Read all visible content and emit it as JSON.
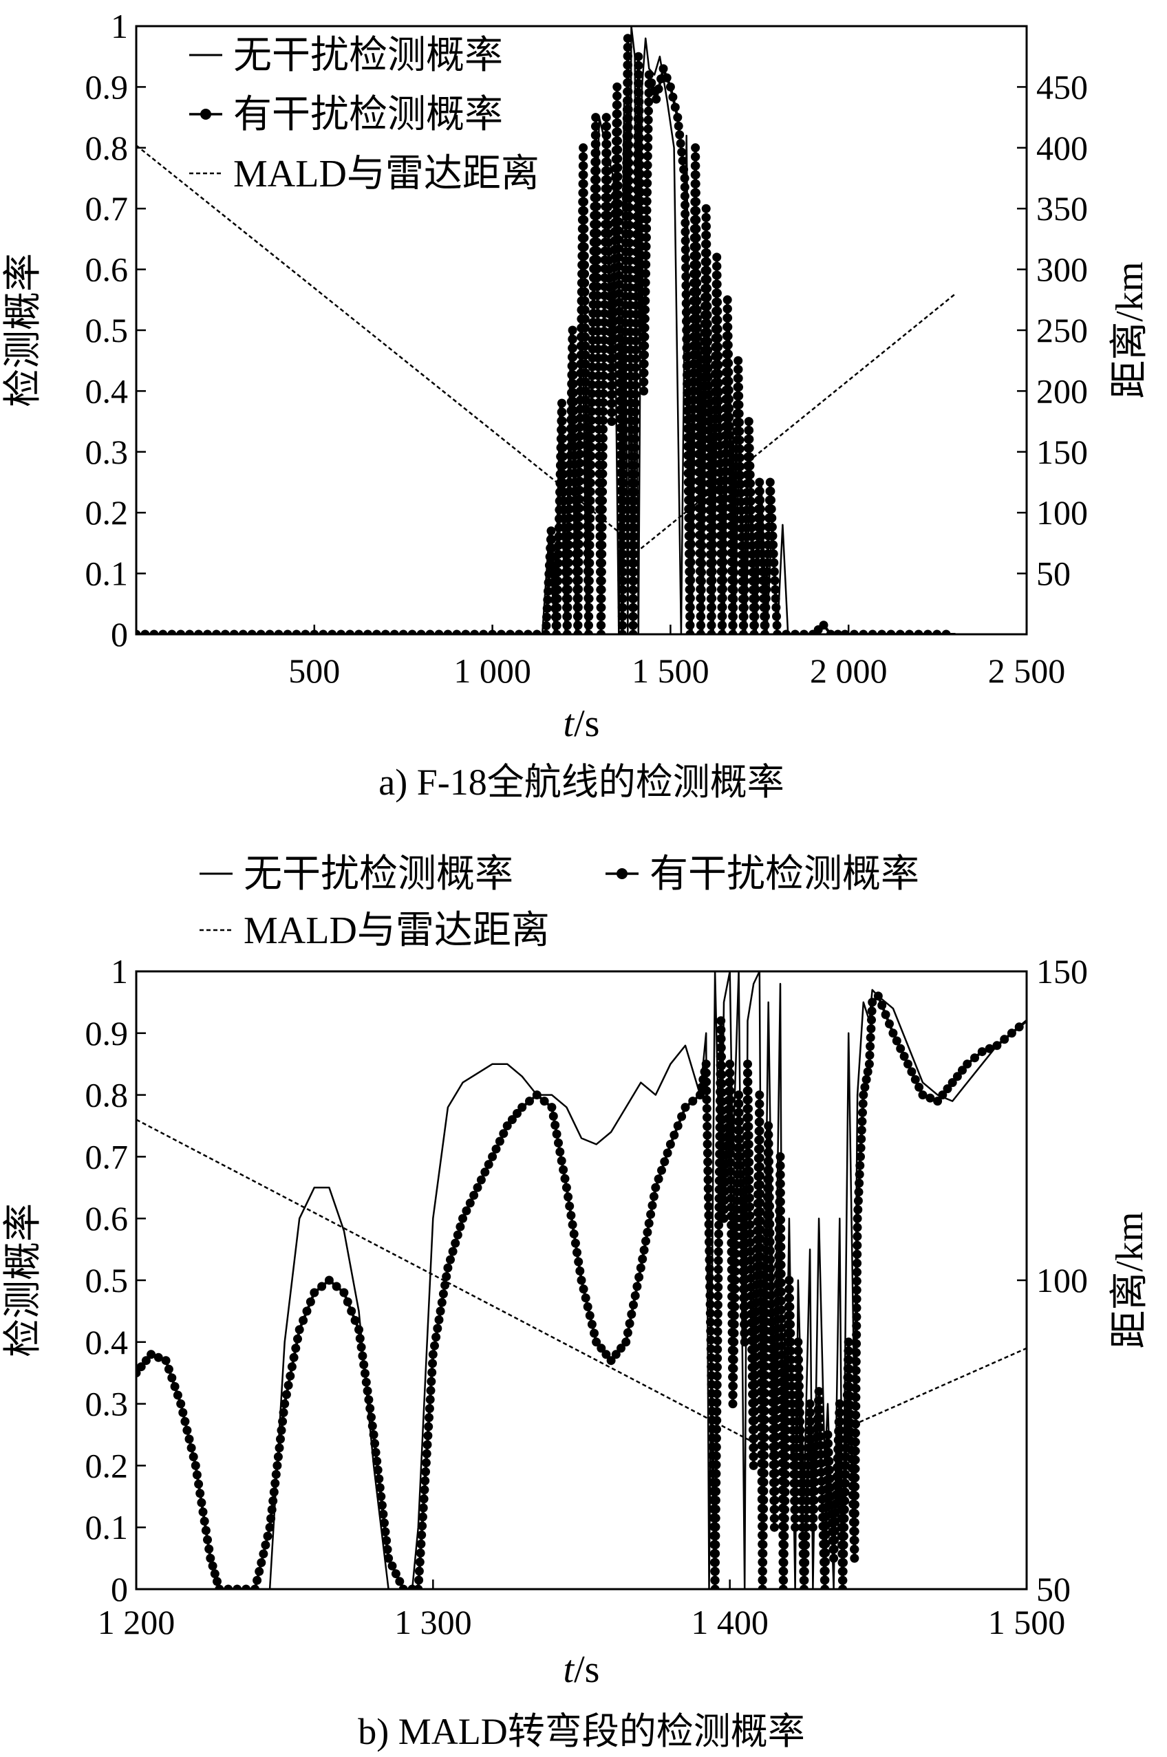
{
  "chart_data": [
    {
      "type": "line",
      "caption": "a) F-18全航线的检测概率",
      "xlabel_italic": "t",
      "xlabel_rest": "/s",
      "ylabel": "检测概率",
      "y2label": "距离/km",
      "xlim": [
        0,
        2500
      ],
      "ylim": [
        0,
        1
      ],
      "y2lim": [
        0,
        500
      ],
      "xticks": [
        500,
        1000,
        1500,
        2000,
        2500
      ],
      "xtick_labels": [
        "500",
        "1 000",
        "1 500",
        "2 000",
        "2 500"
      ],
      "yticks": [
        0,
        0.1,
        0.2,
        0.3,
        0.4,
        0.5,
        0.6,
        0.7,
        0.8,
        0.9,
        1
      ],
      "ytick_labels": [
        "0",
        "0.1",
        "0.2",
        "0.3",
        "0.4",
        "0.5",
        "0.6",
        "0.7",
        "0.8",
        "0.9",
        "1"
      ],
      "y2ticks": [
        50,
        100,
        150,
        200,
        250,
        300,
        350,
        400,
        450
      ],
      "y2tick_labels": [
        "50",
        "100",
        "150",
        "200",
        "250",
        "300",
        "350",
        "400",
        "450"
      ],
      "legend": [
        "无干扰检测概率",
        "有干扰检测概率",
        "MALD与雷达距离"
      ],
      "legend_position": "top-left",
      "series": [
        {
          "name": "无干扰检测概率",
          "style": "solid",
          "x": [
            0,
            1140,
            1160,
            1175,
            1190,
            1205,
            1220,
            1235,
            1250,
            1265,
            1280,
            1300,
            1320,
            1340,
            1355,
            1370,
            1380,
            1390,
            1400,
            1410,
            1420,
            1430,
            1440,
            1455,
            1470,
            1490,
            1510,
            1530,
            1545,
            1560,
            1575,
            1590,
            1605,
            1620,
            1635,
            1650,
            1665,
            1680,
            1695,
            1710,
            1725,
            1740,
            1755,
            1770,
            1785,
            1800,
            1815,
            1830,
            1850,
            2300
          ],
          "y": [
            0,
            0,
            0.17,
            0,
            0.38,
            0,
            0.5,
            0,
            0.65,
            0,
            0.4,
            0.85,
            0.8,
            0.75,
            0,
            0.88,
            0,
            1.0,
            0.95,
            0,
            0.9,
            0.98,
            0.93,
            0.92,
            0.95,
            0.88,
            0.8,
            0,
            0.82,
            0,
            0.7,
            0,
            0.63,
            0,
            0.55,
            0,
            0.5,
            0,
            0.36,
            0,
            0.28,
            0,
            0.25,
            0,
            0.18,
            0,
            0.18,
            0,
            0,
            0
          ]
        },
        {
          "name": "有干扰检测概率",
          "style": "solid-dots",
          "x": [
            0,
            1150,
            1165,
            1180,
            1195,
            1210,
            1225,
            1240,
            1255,
            1270,
            1290,
            1305,
            1320,
            1335,
            1350,
            1365,
            1380,
            1395,
            1410,
            1425,
            1440,
            1460,
            1480,
            1500,
            1520,
            1540,
            1555,
            1570,
            1585,
            1600,
            1615,
            1630,
            1645,
            1660,
            1675,
            1690,
            1705,
            1720,
            1735,
            1750,
            1765,
            1780,
            1800,
            1900,
            1930,
            1950,
            1990,
            2300
          ],
          "y": [
            0,
            0,
            0.17,
            0,
            0.38,
            0,
            0.5,
            0,
            0.8,
            0,
            0.85,
            0,
            0.85,
            0.35,
            0.9,
            0,
            0.98,
            0,
            0.95,
            0.4,
            0.92,
            0.88,
            0.93,
            0.9,
            0.85,
            0.75,
            0,
            0.8,
            0,
            0.7,
            0,
            0.62,
            0,
            0.55,
            0,
            0.45,
            0,
            0.35,
            0,
            0.25,
            0,
            0.25,
            0,
            0,
            0.015,
            0,
            0,
            0
          ]
        },
        {
          "name": "MALD与雷达距离",
          "style": "dashed",
          "axis": "right",
          "x": [
            0,
            1415,
            2300
          ],
          "y": [
            402,
            70,
            280
          ]
        }
      ]
    },
    {
      "type": "line",
      "caption": "b) MALD转弯段的检测概率",
      "xlabel_italic": "t",
      "xlabel_rest": "/s",
      "ylabel": "检测概率",
      "y2label": "距离/km",
      "xlim": [
        1200,
        1500
      ],
      "ylim": [
        0,
        1
      ],
      "y2lim": [
        50,
        150
      ],
      "xticks": [
        1200,
        1300,
        1400,
        1500
      ],
      "xtick_labels": [
        "1 200",
        "1 300",
        "1 400",
        "1 500"
      ],
      "yticks": [
        0,
        0.1,
        0.2,
        0.3,
        0.4,
        0.5,
        0.6,
        0.7,
        0.8,
        0.9,
        1
      ],
      "ytick_labels": [
        "0",
        "0.1",
        "0.2",
        "0.3",
        "0.4",
        "0.5",
        "0.6",
        "0.7",
        "0.8",
        "0.9",
        "1"
      ],
      "y2ticks": [
        50,
        100,
        150
      ],
      "y2tick_labels": [
        "50",
        "100",
        "150"
      ],
      "legend": [
        "无干扰检测概率",
        "有干扰检测概率",
        "MALD与雷达距离"
      ],
      "legend_position": "above",
      "series": [
        {
          "name": "无干扰检测概率",
          "style": "solid",
          "x": [
            1200,
            1205,
            1210,
            1215,
            1220,
            1225,
            1228,
            1245,
            1250,
            1255,
            1260,
            1265,
            1270,
            1275,
            1280,
            1285,
            1290,
            1293,
            1295,
            1300,
            1305,
            1310,
            1320,
            1325,
            1330,
            1335,
            1340,
            1345,
            1350,
            1355,
            1360,
            1365,
            1370,
            1375,
            1380,
            1385,
            1390,
            1392,
            1393,
            1395,
            1397,
            1398,
            1400,
            1401,
            1403,
            1405,
            1406,
            1408,
            1410,
            1411,
            1413,
            1415,
            1417,
            1418,
            1420,
            1422,
            1423,
            1425,
            1427,
            1428,
            1430,
            1432,
            1433,
            1435,
            1437,
            1438,
            1440,
            1442,
            1443,
            1445,
            1447,
            1448,
            1450,
            1455,
            1460,
            1465,
            1470,
            1475,
            1480,
            1485,
            1490,
            1495,
            1500
          ],
          "y": [
            0.35,
            0.38,
            0.37,
            0.3,
            0.2,
            0.05,
            0,
            0,
            0.4,
            0.6,
            0.65,
            0.65,
            0.58,
            0.45,
            0.2,
            0,
            0,
            0,
            0.1,
            0.6,
            0.78,
            0.82,
            0.85,
            0.85,
            0.83,
            0.8,
            0.8,
            0.78,
            0.73,
            0.72,
            0.74,
            0.78,
            0.82,
            0.8,
            0.85,
            0.88,
            0.8,
            0.9,
            0,
            1.0,
            0.6,
            0.95,
            1.0,
            0.7,
            1.0,
            0,
            0.92,
            0.98,
            1.0,
            0.2,
            0.95,
            0.3,
            0.98,
            0,
            0.6,
            0,
            0.5,
            0.15,
            0.55,
            0,
            0.6,
            0.2,
            0.3,
            0,
            0.6,
            0,
            0.9,
            0.3,
            0.8,
            0.95,
            0.92,
            0.97,
            0.96,
            0.94,
            0.88,
            0.82,
            0.8,
            0.79,
            0.82,
            0.85,
            0.88,
            0.9,
            0.92
          ]
        },
        {
          "name": "有干扰检测概率",
          "style": "solid-dots",
          "x": [
            1200,
            1205,
            1210,
            1215,
            1220,
            1225,
            1228,
            1240,
            1245,
            1250,
            1255,
            1260,
            1265,
            1270,
            1275,
            1280,
            1285,
            1290,
            1293,
            1295,
            1300,
            1305,
            1310,
            1315,
            1320,
            1325,
            1330,
            1335,
            1340,
            1345,
            1350,
            1355,
            1360,
            1365,
            1370,
            1375,
            1380,
            1385,
            1390,
            1392,
            1395,
            1397,
            1398,
            1400,
            1401,
            1403,
            1405,
            1406,
            1408,
            1410,
            1411,
            1413,
            1415,
            1417,
            1418,
            1420,
            1422,
            1423,
            1425,
            1427,
            1428,
            1430,
            1432,
            1433,
            1435,
            1437,
            1438,
            1440,
            1442,
            1443,
            1445,
            1447,
            1448,
            1450,
            1455,
            1460,
            1465,
            1470,
            1475,
            1480,
            1485,
            1490,
            1495,
            1500
          ],
          "y": [
            0.35,
            0.38,
            0.37,
            0.3,
            0.2,
            0.05,
            0,
            0,
            0.1,
            0.3,
            0.42,
            0.48,
            0.5,
            0.48,
            0.42,
            0.25,
            0.05,
            0,
            0,
            0,
            0.38,
            0.52,
            0.6,
            0.65,
            0.7,
            0.75,
            0.78,
            0.8,
            0.78,
            0.65,
            0.5,
            0.4,
            0.37,
            0.4,
            0.52,
            0.65,
            0.72,
            0.78,
            0.8,
            0.85,
            0,
            0.92,
            0.6,
            0.85,
            0.3,
            0.8,
            0.4,
            0.85,
            0.2,
            0.8,
            0,
            0.75,
            0.1,
            0.7,
            0,
            0.5,
            0.1,
            0.4,
            0,
            0.3,
            0.1,
            0.32,
            0,
            0.25,
            0.05,
            0.3,
            0,
            0.4,
            0.05,
            0.6,
            0.8,
            0.85,
            0.95,
            0.96,
            0.9,
            0.85,
            0.8,
            0.79,
            0.82,
            0.85,
            0.87,
            0.88,
            0.9,
            0.92
          ]
        },
        {
          "name": "MALD与雷达距离",
          "style": "dashed",
          "axis": "right",
          "x": [
            1200,
            1415,
            1420,
            1500
          ],
          "y": [
            126,
            72,
            72,
            89
          ]
        }
      ]
    }
  ]
}
